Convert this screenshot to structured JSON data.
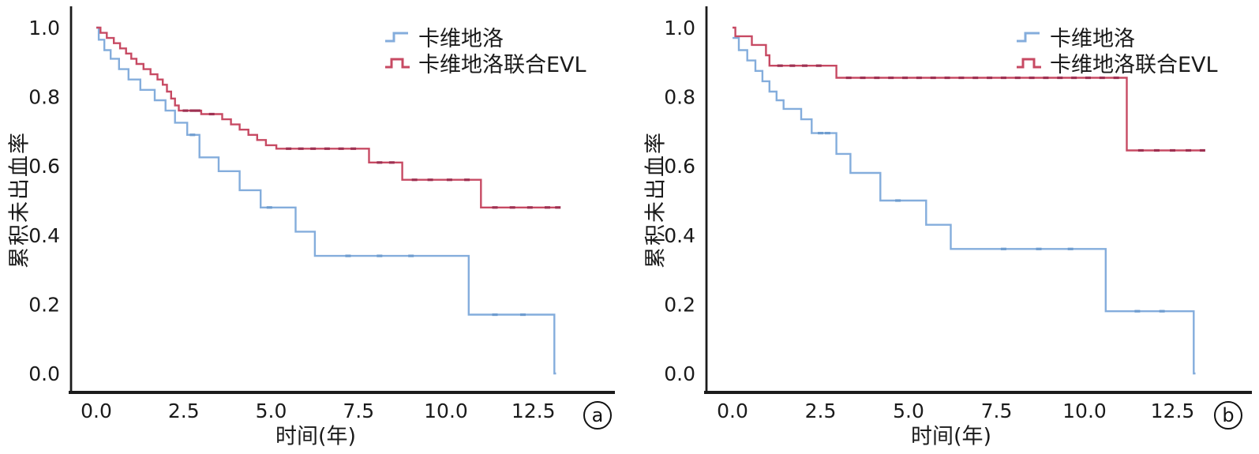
{
  "figure": {
    "background": "#ffffff",
    "axis_color": "#1b1b1b",
    "text_color": "#1a1a1a"
  },
  "chart_data": [
    {
      "type": "line",
      "subtype": "kaplan-meier-step",
      "panel_letter": "a",
      "title": "",
      "xlabel": "时间(年)",
      "ylabel": "累积未出血率",
      "xlim": [
        -0.7,
        14.8
      ],
      "ylim": [
        -0.055,
        1.06
      ],
      "grid": false,
      "legend_position": "upper right",
      "x_ticks": {
        "values": [
          0,
          2.5,
          5,
          7.5,
          10,
          12.5
        ],
        "labels": [
          "0.0",
          "2.5",
          "5.0",
          "7.5",
          "10.0",
          "12.5"
        ]
      },
      "y_ticks": {
        "values": [
          1.0,
          0.8,
          0.6,
          0.4,
          0.2,
          0.0
        ],
        "labels": [
          "1.0",
          "0.8",
          "0.6",
          "0.4",
          "0.2",
          "0.0"
        ]
      },
      "series": [
        {
          "name": "卡维地洛",
          "color": "#84ADDC",
          "censor_color": "#6E9CCF",
          "points": [
            [
              0,
              1.0
            ],
            [
              0.07,
              0.965
            ],
            [
              0.23,
              0.935
            ],
            [
              0.41,
              0.91
            ],
            [
              0.65,
              0.88
            ],
            [
              0.92,
              0.85
            ],
            [
              1.26,
              0.82
            ],
            [
              1.67,
              0.79
            ],
            [
              1.98,
              0.76
            ],
            [
              2.25,
              0.725
            ],
            [
              2.6,
              0.69
            ],
            [
              2.95,
              0.625
            ],
            [
              3.5,
              0.585
            ],
            [
              4.1,
              0.53
            ],
            [
              4.7,
              0.48
            ],
            [
              5.7,
              0.41
            ],
            [
              6.25,
              0.34
            ],
            [
              10.65,
              0.17
            ],
            [
              13.1,
              0.0
            ],
            [
              13.15,
              0.0
            ]
          ],
          "censors": [
            [
              2.75,
              0.69
            ],
            [
              4.95,
              0.48
            ],
            [
              7.2,
              0.34
            ],
            [
              8.1,
              0.34
            ],
            [
              9.0,
              0.34
            ],
            [
              11.4,
              0.17
            ],
            [
              12.2,
              0.17
            ]
          ]
        },
        {
          "name": "卡维地洛联合EVL",
          "color": "#C74A63",
          "censor_color": "#9E3152",
          "points": [
            [
              0,
              1.0
            ],
            [
              0.12,
              0.985
            ],
            [
              0.3,
              0.97
            ],
            [
              0.5,
              0.955
            ],
            [
              0.68,
              0.94
            ],
            [
              0.85,
              0.925
            ],
            [
              1.0,
              0.91
            ],
            [
              1.15,
              0.895
            ],
            [
              1.35,
              0.88
            ],
            [
              1.55,
              0.865
            ],
            [
              1.75,
              0.85
            ],
            [
              1.9,
              0.835
            ],
            [
              2.02,
              0.815
            ],
            [
              2.14,
              0.795
            ],
            [
              2.25,
              0.775
            ],
            [
              2.36,
              0.76
            ],
            [
              3.0,
              0.75
            ],
            [
              3.6,
              0.735
            ],
            [
              3.85,
              0.72
            ],
            [
              4.1,
              0.705
            ],
            [
              4.35,
              0.69
            ],
            [
              4.6,
              0.675
            ],
            [
              4.85,
              0.66
            ],
            [
              5.15,
              0.65
            ],
            [
              7.8,
              0.61
            ],
            [
              8.75,
              0.56
            ],
            [
              11.0,
              0.48
            ],
            [
              13.25,
              0.48
            ]
          ],
          "censors": [
            [
              2.55,
              0.76
            ],
            [
              2.75,
              0.76
            ],
            [
              2.9,
              0.76
            ],
            [
              3.3,
              0.75
            ],
            [
              5.5,
              0.65
            ],
            [
              5.85,
              0.65
            ],
            [
              6.2,
              0.65
            ],
            [
              6.6,
              0.65
            ],
            [
              7.0,
              0.65
            ],
            [
              7.35,
              0.65
            ],
            [
              8.1,
              0.61
            ],
            [
              8.45,
              0.61
            ],
            [
              9.1,
              0.56
            ],
            [
              9.55,
              0.56
            ],
            [
              10.1,
              0.56
            ],
            [
              10.6,
              0.56
            ],
            [
              11.4,
              0.48
            ],
            [
              11.9,
              0.48
            ],
            [
              12.4,
              0.48
            ],
            [
              12.9,
              0.48
            ],
            [
              13.2,
              0.48
            ]
          ]
        }
      ]
    },
    {
      "type": "line",
      "subtype": "kaplan-meier-step",
      "panel_letter": "b",
      "title": "",
      "xlabel": "时间(年)",
      "ylabel": "累积未出血率",
      "xlim": [
        -0.75,
        14.75
      ],
      "ylim": [
        -0.055,
        1.06
      ],
      "grid": false,
      "legend_position": "upper right",
      "x_ticks": {
        "values": [
          0,
          2.5,
          5,
          7.5,
          10,
          12.5
        ],
        "labels": [
          "0.0",
          "2.5",
          "5.0",
          "7.5",
          "10.0",
          "12.5"
        ]
      },
      "y_ticks": {
        "values": [
          1.0,
          0.8,
          0.6,
          0.4,
          0.2,
          0.0
        ],
        "labels": [
          "1.0",
          "0.8",
          "0.6",
          "0.4",
          "0.2",
          "0.0"
        ]
      },
      "series": [
        {
          "name": "卡维地洛",
          "color": "#84ADDC",
          "censor_color": "#6E9CCF",
          "points": [
            [
              0,
              0.97
            ],
            [
              0.18,
              0.935
            ],
            [
              0.42,
              0.905
            ],
            [
              0.65,
              0.875
            ],
            [
              0.85,
              0.845
            ],
            [
              1.05,
              0.815
            ],
            [
              1.25,
              0.79
            ],
            [
              1.45,
              0.765
            ],
            [
              1.95,
              0.735
            ],
            [
              2.25,
              0.695
            ],
            [
              2.95,
              0.635
            ],
            [
              3.35,
              0.58
            ],
            [
              4.2,
              0.5
            ],
            [
              5.5,
              0.43
            ],
            [
              6.2,
              0.36
            ],
            [
              10.6,
              0.18
            ],
            [
              13.1,
              0.0
            ],
            [
              13.15,
              0.0
            ]
          ],
          "censors": [
            [
              2.5,
              0.695
            ],
            [
              2.7,
              0.695
            ],
            [
              4.7,
              0.5
            ],
            [
              7.7,
              0.36
            ],
            [
              8.7,
              0.36
            ],
            [
              9.6,
              0.36
            ],
            [
              11.5,
              0.18
            ],
            [
              12.2,
              0.18
            ]
          ]
        },
        {
          "name": "卡维地洛联合EVL",
          "color": "#C74A63",
          "censor_color": "#9E3152",
          "points": [
            [
              0,
              1.0
            ],
            [
              0.08,
              0.975
            ],
            [
              0.55,
              0.95
            ],
            [
              0.95,
              0.92
            ],
            [
              1.05,
              0.89
            ],
            [
              2.95,
              0.855
            ],
            [
              11.2,
              0.645
            ],
            [
              13.4,
              0.645
            ]
          ],
          "censors": [
            [
              1.35,
              0.89
            ],
            [
              1.7,
              0.89
            ],
            [
              2.05,
              0.89
            ],
            [
              2.45,
              0.89
            ],
            [
              3.3,
              0.855
            ],
            [
              3.7,
              0.855
            ],
            [
              4.1,
              0.855
            ],
            [
              4.5,
              0.855
            ],
            [
              4.9,
              0.855
            ],
            [
              5.3,
              0.855
            ],
            [
              5.7,
              0.855
            ],
            [
              6.1,
              0.855
            ],
            [
              6.5,
              0.855
            ],
            [
              6.9,
              0.855
            ],
            [
              7.3,
              0.855
            ],
            [
              7.7,
              0.855
            ],
            [
              8.1,
              0.855
            ],
            [
              8.5,
              0.855
            ],
            [
              8.9,
              0.855
            ],
            [
              9.3,
              0.855
            ],
            [
              9.7,
              0.855
            ],
            [
              10.1,
              0.855
            ],
            [
              10.5,
              0.855
            ],
            [
              10.9,
              0.855
            ],
            [
              11.6,
              0.645
            ],
            [
              12.05,
              0.645
            ],
            [
              12.5,
              0.645
            ],
            [
              12.95,
              0.645
            ],
            [
              13.35,
              0.645
            ]
          ]
        }
      ]
    }
  ]
}
